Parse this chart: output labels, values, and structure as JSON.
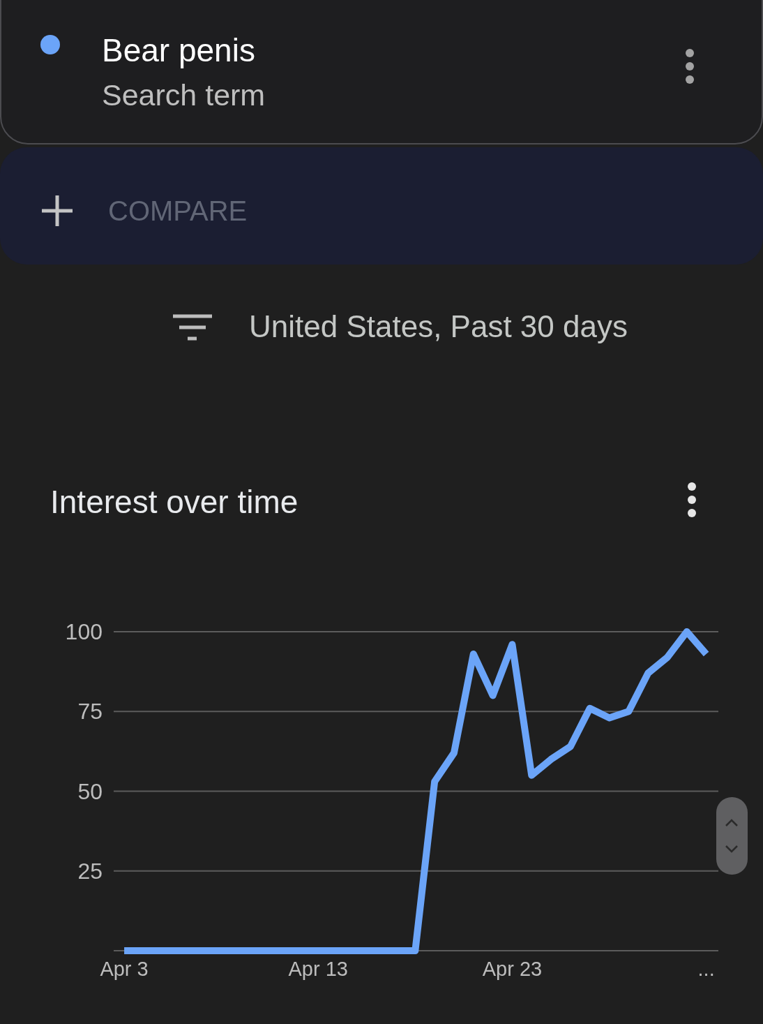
{
  "chart_data": {
    "type": "line",
    "title": "Interest over time",
    "subtitle": "United States, Past 30 days",
    "annotations": [
      "Search term",
      "COMPARE"
    ],
    "x": [
      "--04-03",
      "--04-04",
      "--04-05",
      "--04-06",
      "--04-07",
      "--04-08",
      "--04-09",
      "--04-10",
      "--04-11",
      "--04-12",
      "--04-13",
      "--04-14",
      "--04-15",
      "--04-16",
      "--04-17",
      "--04-18",
      "--04-19",
      "--04-20",
      "--04-21",
      "--04-22",
      "--04-23",
      "--04-24",
      "--04-25",
      "--04-26",
      "--04-27",
      "--04-28",
      "--04-29",
      "--04-30",
      "--05-01",
      "--05-02",
      "--05-03"
    ],
    "series": [
      {
        "name": "Bear penis",
        "color": "#6ba4f8",
        "values": [
          0,
          0,
          0,
          0,
          0,
          0,
          0,
          0,
          0,
          0,
          0,
          0,
          0,
          0,
          0,
          0,
          53,
          62,
          93,
          80,
          96,
          55,
          60,
          64,
          76,
          73,
          75,
          87,
          92,
          100,
          93
        ]
      }
    ],
    "xlim": [
      "--04-02T11:00",
      "--05-03T15:00"
    ],
    "xticks": [
      {
        "value": "--04-03",
        "label": "Apr 3"
      },
      {
        "value": "--04-13",
        "label": "Apr 13"
      },
      {
        "value": "--04-23",
        "label": "Apr 23"
      },
      {
        "value": "--05-03",
        "label": "..."
      }
    ],
    "ylim": [
      0,
      100
    ],
    "yticks": [
      {
        "value": 0,
        "label": null
      },
      25,
      50,
      75,
      100
    ],
    "grid": "y",
    "legend": "top",
    "line_style": "solid"
  }
}
